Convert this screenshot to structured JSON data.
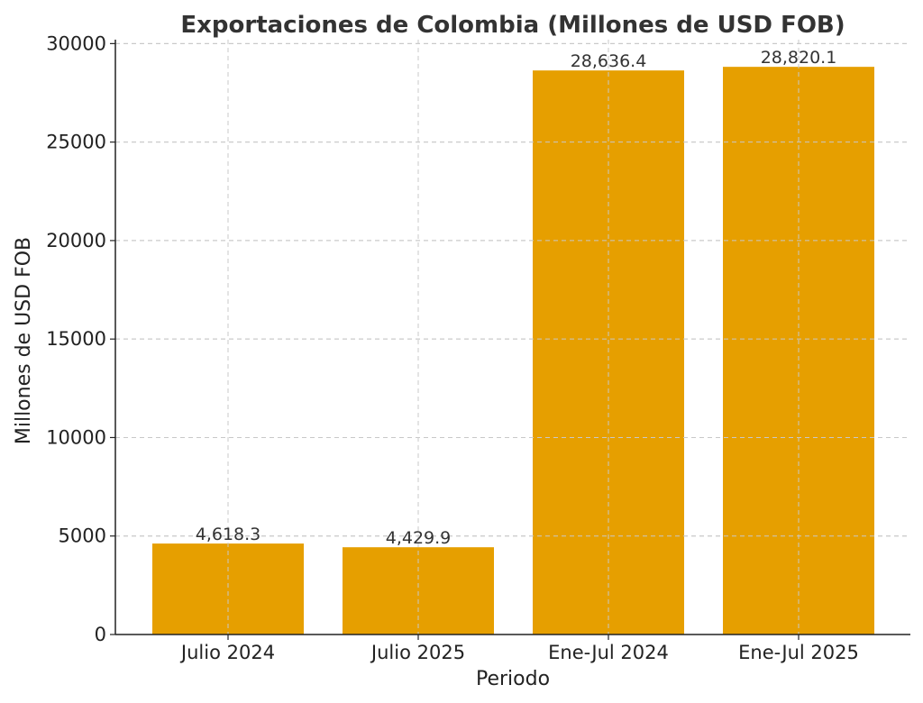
{
  "chart_data": {
    "type": "bar",
    "title": "Exportaciones de Colombia (Millones de USD FOB)",
    "xlabel": "Periodo",
    "ylabel": "Millones de USD FOB",
    "categories": [
      "Julio 2024",
      "Julio 2025",
      "Ene-Jul 2024",
      "Ene-Jul 2025"
    ],
    "values": [
      4618.3,
      4429.9,
      28636.4,
      28820.1
    ],
    "value_labels": [
      "4,618.3",
      "4,429.9",
      "28,636.4",
      "28,820.1"
    ],
    "ylim": [
      0,
      30000
    ],
    "yticks": [
      0,
      5000,
      10000,
      15000,
      20000,
      25000,
      30000
    ],
    "ytick_labels": [
      "0",
      "5000",
      "10000",
      "15000",
      "20000",
      "25000",
      "30000"
    ],
    "grid": true,
    "bar_color": "#E69F00"
  }
}
